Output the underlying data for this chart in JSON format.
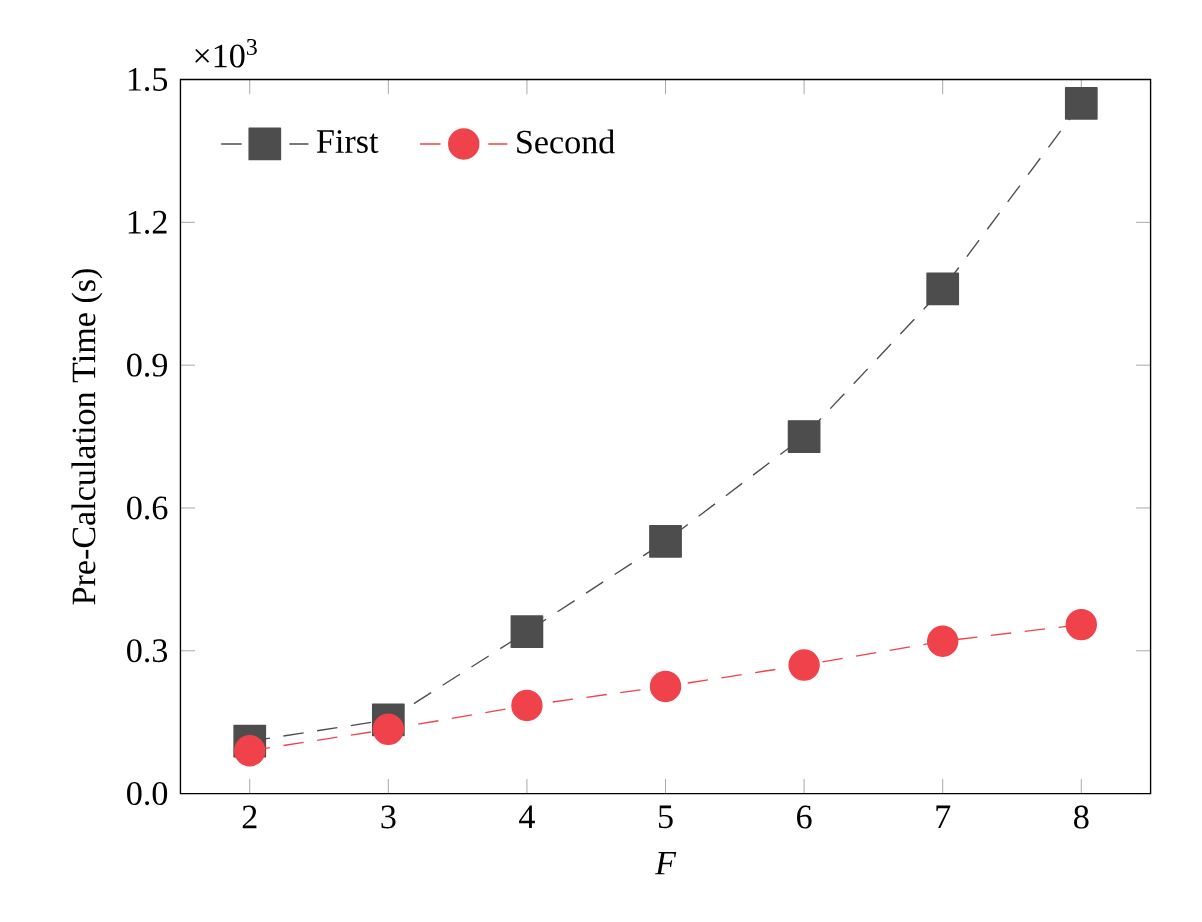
{
  "chart_data": {
    "type": "line",
    "xlabel": "F",
    "ylabel": "Pre-Calculation Time (s)",
    "annotations": [
      "×10$^{3}$"
    ],
    "x": [
      2,
      3,
      4,
      5,
      6,
      7,
      8
    ],
    "xlim": [
      1.5,
      8.5
    ],
    "xticks": [
      2,
      3,
      4,
      5,
      6,
      7,
      8
    ],
    "ylim": [
      0,
      1.5
    ],
    "yticks": [
      {
        "value": 0,
        "label": "0.0"
      },
      0.3,
      0.6,
      0.9,
      1.2,
      1.5
    ],
    "series": [
      {
        "name": "First",
        "color": "#4d4d4d",
        "marker": "square",
        "values": [
          0.11,
          0.155,
          0.34,
          0.53,
          0.75,
          1.06,
          1.45
        ]
      },
      {
        "name": "Second",
        "color": "#f0424a",
        "marker": "circle",
        "values": [
          0.09,
          0.135,
          0.185,
          0.225,
          0.27,
          0.32,
          0.355
        ]
      }
    ],
    "line_style": "dashed",
    "legend": "top left",
    "grid": false
  }
}
